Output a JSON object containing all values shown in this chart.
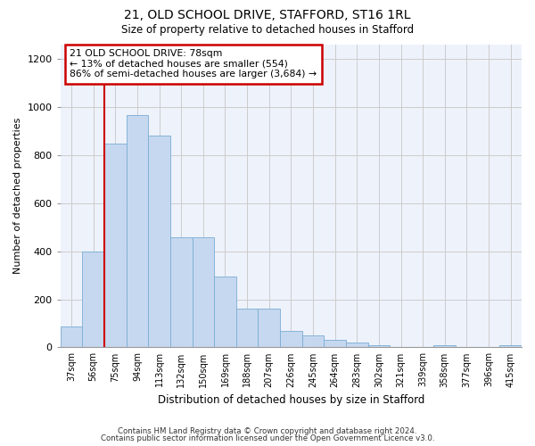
{
  "title1": "21, OLD SCHOOL DRIVE, STAFFORD, ST16 1RL",
  "title2": "Size of property relative to detached houses in Stafford",
  "xlabel": "Distribution of detached houses by size in Stafford",
  "ylabel": "Number of detached properties",
  "categories": [
    "37sqm",
    "56sqm",
    "75sqm",
    "94sqm",
    "113sqm",
    "132sqm",
    "150sqm",
    "169sqm",
    "188sqm",
    "207sqm",
    "226sqm",
    "245sqm",
    "264sqm",
    "283sqm",
    "302sqm",
    "321sqm",
    "339sqm",
    "358sqm",
    "377sqm",
    "396sqm",
    "415sqm"
  ],
  "values": [
    88,
    398,
    848,
    968,
    880,
    460,
    460,
    296,
    162,
    162,
    68,
    48,
    30,
    20,
    10,
    0,
    0,
    10,
    0,
    0,
    10
  ],
  "bar_color": "#c6d8ef",
  "bar_edge_color": "#7aadd4",
  "annotation_text": "21 OLD SCHOOL DRIVE: 78sqm\n← 13% of detached houses are smaller (554)\n86% of semi-detached houses are larger (3,684) →",
  "annotation_box_color": "white",
  "annotation_box_edge_color": "#cc0000",
  "vline_color": "#cc0000",
  "vline_x_index": 2,
  "ylim": [
    0,
    1260
  ],
  "yticks": [
    0,
    200,
    400,
    600,
    800,
    1000,
    1200
  ],
  "footer1": "Contains HM Land Registry data © Crown copyright and database right 2024.",
  "footer2": "Contains public sector information licensed under the Open Government Licence v3.0.",
  "grid_color": "#cccccc",
  "bg_color": "#eef2fb"
}
